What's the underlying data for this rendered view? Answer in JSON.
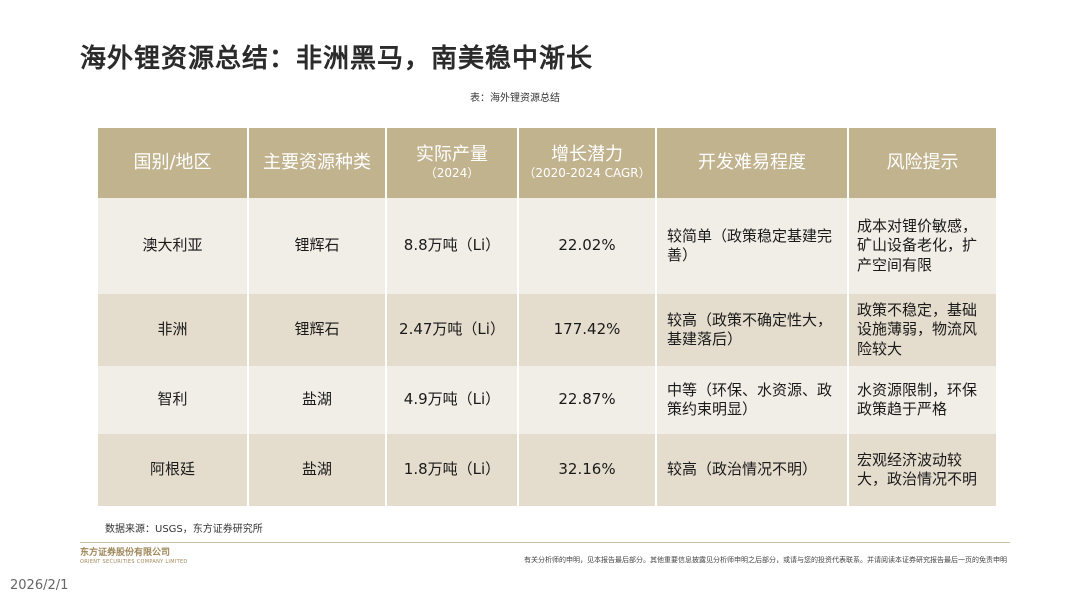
{
  "title": "海外锂资源总结：非洲黑马，南美稳中渐长",
  "caption": "表：海外锂资源总结",
  "table": {
    "headers": [
      {
        "label": "国别/地区",
        "sub": ""
      },
      {
        "label": "主要资源种类",
        "sub": ""
      },
      {
        "label": "实际产量",
        "sub": "（2024）"
      },
      {
        "label": "增长潜力",
        "sub": "（2020-2024 CAGR）"
      },
      {
        "label": "开发难易程度",
        "sub": ""
      },
      {
        "label": "风险提示",
        "sub": ""
      }
    ],
    "rows": [
      {
        "region": "澳大利亚",
        "resource": "锂辉石",
        "output": "8.8万吨（Li）",
        "cagr": "22.02%",
        "difficulty": "较简单（政策稳定基建完善）",
        "risk": "成本对锂价敏感，矿山设备老化，扩产空间有限"
      },
      {
        "region": "非洲",
        "resource": "锂辉石",
        "output": "2.47万吨（Li）",
        "cagr": "177.42%",
        "difficulty": "较高（政策不确定性大，基建落后）",
        "risk": "政策不稳定，基础设施薄弱，物流风险较大"
      },
      {
        "region": "智利",
        "resource": "盐湖",
        "output": "4.9万吨（Li）",
        "cagr": "22.87%",
        "difficulty": "中等（环保、水资源、政策约束明显）",
        "risk": "水资源限制，环保政策趋于严格"
      },
      {
        "region": "阿根廷",
        "resource": "盐湖",
        "output": "1.8万吨（Li）",
        "cagr": "32.16%",
        "difficulty": "较高（政治情况不明）",
        "risk": "宏观经济波动较大，政治情况不明"
      }
    ]
  },
  "source": "数据来源：USGS，东方证券研究所",
  "footer": {
    "logo_cn": "东方证券股份有限公司",
    "logo_en": "ORIENT SECURITIES COMPANY LIMITED",
    "disclaimer": "有关分析师的申明，见本报告最后部分。其他重要信息披露见分析师申明之后部分，或请与您的投资代表联系。并请阅读本证券研究报告最后一页的免责申明"
  },
  "date": "2026/2/1"
}
